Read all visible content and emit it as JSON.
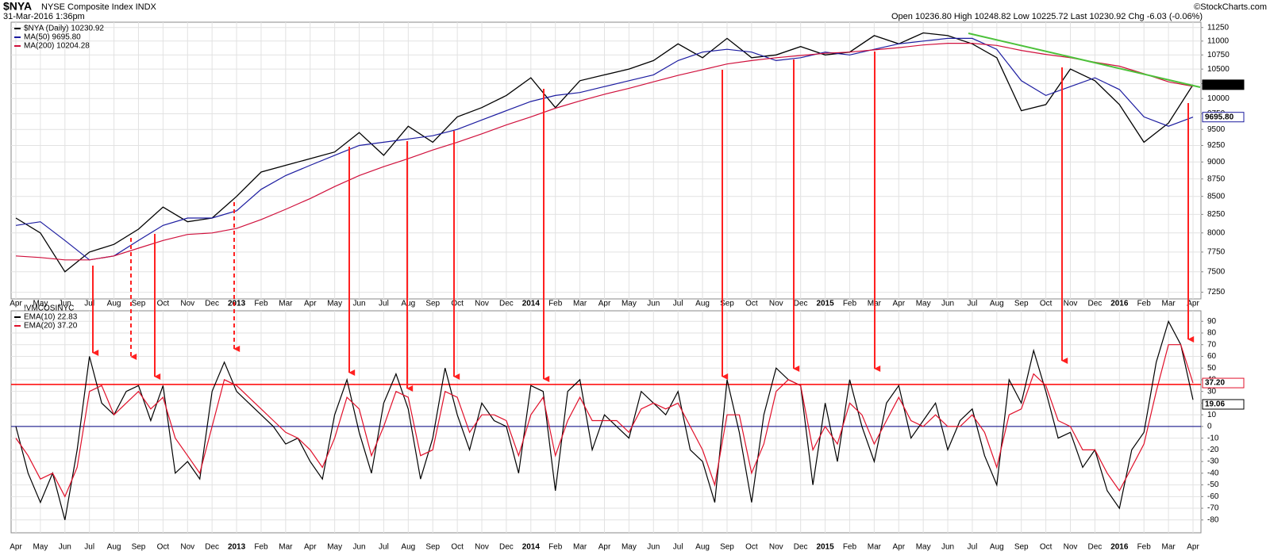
{
  "header": {
    "symbol": "$NYA",
    "title": "NYSE Composite Index INDX",
    "date": "31-Mar-2016 1:36pm",
    "quote": "Open 10236.80 High 10248.82 Low 10225.72 Last 10230.92 Chg -6.03 (-0.06%)",
    "credit": "©StockCharts.com"
  },
  "chart_data": [
    {
      "type": "line",
      "log_scale": true,
      "grid": true,
      "categories": [
        "Apr",
        "May",
        "Jun",
        "Jul",
        "Aug",
        "Sep",
        "Oct",
        "Nov",
        "Dec",
        "2013",
        "Feb",
        "Mar",
        "Apr",
        "May",
        "Jun",
        "Jul",
        "Aug",
        "Sep",
        "Oct",
        "Nov",
        "Dec",
        "2014",
        "Feb",
        "Mar",
        "Apr",
        "May",
        "Jun",
        "Jul",
        "Aug",
        "Sep",
        "Oct",
        "Nov",
        "Dec",
        "2015",
        "Feb",
        "Mar",
        "Apr",
        "May",
        "Jun",
        "Jul",
        "Aug",
        "Sep",
        "Oct",
        "Nov",
        "Dec",
        "2016",
        "Feb",
        "Mar",
        "Apr"
      ],
      "ylim": [
        7170,
        11350
      ],
      "yticks": [
        7250,
        7500,
        7750,
        8000,
        8250,
        8500,
        8750,
        9000,
        9250,
        9500,
        9750,
        10000,
        10250,
        10500,
        10750,
        11000,
        11250
      ],
      "series": [
        {
          "name": "$NYA (Daily) 10230.92",
          "color": "#000000",
          "tag": "10230.92",
          "values": [
            8200,
            8000,
            7500,
            7750,
            7850,
            8050,
            8350,
            8150,
            8200,
            8500,
            8850,
            8950,
            9050,
            9150,
            9450,
            9100,
            9550,
            9300,
            9700,
            9850,
            10050,
            10350,
            9850,
            10300,
            10400,
            10500,
            10650,
            10950,
            10700,
            11050,
            10700,
            10750,
            10900,
            10750,
            10800,
            11100,
            10950,
            11150,
            11100,
            10950,
            10700,
            9800,
            9900,
            10500,
            10300,
            9900,
            9300,
            9600,
            10230.92
          ]
        },
        {
          "name": "MA(50) 9695.80",
          "color": "#1c1ca0",
          "tag": "9695.80",
          "values": [
            8100,
            8150,
            7900,
            7650,
            7700,
            7900,
            8100,
            8200,
            8200,
            8300,
            8600,
            8800,
            8950,
            9100,
            9250,
            9300,
            9350,
            9400,
            9500,
            9650,
            9800,
            9950,
            10050,
            10100,
            10200,
            10300,
            10400,
            10650,
            10800,
            10850,
            10800,
            10650,
            10700,
            10800,
            10750,
            10850,
            10950,
            11000,
            11050,
            11050,
            10850,
            10300,
            10050,
            10200,
            10350,
            10150,
            9700,
            9550,
            9695.8
          ]
        },
        {
          "name": "MA(200) 10204.28",
          "color": "#d0103c",
          "values": [
            7700,
            7680,
            7650,
            7650,
            7700,
            7800,
            7900,
            7980,
            8000,
            8060,
            8180,
            8320,
            8470,
            8640,
            8800,
            8930,
            9050,
            9180,
            9300,
            9430,
            9570,
            9700,
            9840,
            9960,
            10070,
            10170,
            10280,
            10390,
            10490,
            10590,
            10650,
            10700,
            10740,
            10780,
            10800,
            10840,
            10880,
            10930,
            10960,
            10960,
            10920,
            10830,
            10760,
            10700,
            10620,
            10550,
            10420,
            10280,
            10204.28
          ]
        }
      ]
    },
    {
      "type": "line",
      "title": "!VMCOSINYC",
      "grid": true,
      "categories": [
        "Apr",
        null,
        "May",
        null,
        "Jun",
        null,
        "Jul",
        null,
        "Aug",
        null,
        "Sep",
        null,
        "Oct",
        null,
        "Nov",
        null,
        "Dec",
        null,
        "2013",
        null,
        "Feb",
        null,
        "Mar",
        null,
        "Apr",
        null,
        "May",
        null,
        "Jun",
        null,
        "Jul",
        null,
        "Aug",
        null,
        "Sep",
        null,
        "Oct",
        null,
        "Nov",
        null,
        "Dec",
        null,
        "2014",
        null,
        "Feb",
        null,
        "Mar",
        null,
        "Apr",
        null,
        "May",
        null,
        "Jun",
        null,
        "Jul",
        null,
        "Aug",
        null,
        "Sep",
        null,
        "Oct",
        null,
        "Nov",
        null,
        "Dec",
        null,
        "2015",
        null,
        "Feb",
        null,
        "Mar",
        null,
        "Apr",
        null,
        "May",
        null,
        "Jun",
        null,
        "Jul",
        null,
        "Aug",
        null,
        "Sep",
        null,
        "Oct",
        null,
        "Nov",
        null,
        "Dec",
        null,
        "2016",
        null,
        "Feb",
        null,
        "Mar",
        null,
        "Apr"
      ],
      "ylim": [
        -91,
        99
      ],
      "yticks": [
        -80,
        -70,
        -60,
        -50,
        -40,
        -30,
        -20,
        -10,
        0,
        10,
        20,
        30,
        40,
        50,
        60,
        70,
        80,
        90
      ],
      "hlines": [
        {
          "value": 36,
          "color": "#ff0000"
        },
        {
          "value": 0,
          "color": "#000080"
        }
      ],
      "annotations": [
        "19.06"
      ],
      "series": [
        {
          "name": "EMA(10) 22.83",
          "color": "#000000",
          "values": [
            0,
            -40,
            -65,
            -40,
            -80,
            -20,
            60,
            20,
            10,
            30,
            35,
            5,
            35,
            -40,
            -30,
            -45,
            30,
            55,
            30,
            20,
            10,
            0,
            -15,
            -10,
            -30,
            -45,
            10,
            40,
            -5,
            -40,
            20,
            45,
            15,
            -45,
            -10,
            50,
            10,
            -20,
            20,
            5,
            0,
            -40,
            35,
            30,
            -55,
            30,
            40,
            -20,
            10,
            0,
            -10,
            30,
            20,
            10,
            30,
            -20,
            -30,
            -65,
            40,
            -5,
            -65,
            10,
            50,
            40,
            35,
            -50,
            20,
            -30,
            40,
            0,
            -30,
            20,
            35,
            -10,
            5,
            20,
            -20,
            5,
            15,
            -25,
            -50,
            40,
            20,
            65,
            30,
            -10,
            -5,
            -35,
            -20,
            -55,
            -70,
            -20,
            -5,
            55,
            90,
            70,
            22.83
          ]
        },
        {
          "name": "EMA(20) 37.20",
          "color": "#e0102a",
          "tag": "37.20",
          "values": [
            -10,
            -25,
            -45,
            -40,
            -60,
            -35,
            30,
            35,
            10,
            20,
            30,
            15,
            25,
            -10,
            -25,
            -40,
            0,
            40,
            35,
            25,
            15,
            5,
            -5,
            -10,
            -20,
            -35,
            -10,
            25,
            15,
            -25,
            0,
            30,
            25,
            -25,
            -20,
            30,
            25,
            -5,
            10,
            10,
            5,
            -25,
            10,
            25,
            -25,
            5,
            25,
            5,
            5,
            5,
            -5,
            15,
            20,
            15,
            20,
            0,
            -20,
            -50,
            10,
            10,
            -40,
            -15,
            30,
            40,
            35,
            -20,
            0,
            -15,
            20,
            10,
            -15,
            5,
            25,
            5,
            0,
            10,
            0,
            0,
            10,
            -5,
            -35,
            10,
            15,
            45,
            35,
            5,
            0,
            -20,
            -20,
            -40,
            -55,
            -35,
            -15,
            30,
            70,
            70,
            37.2
          ]
        }
      ]
    }
  ]
}
